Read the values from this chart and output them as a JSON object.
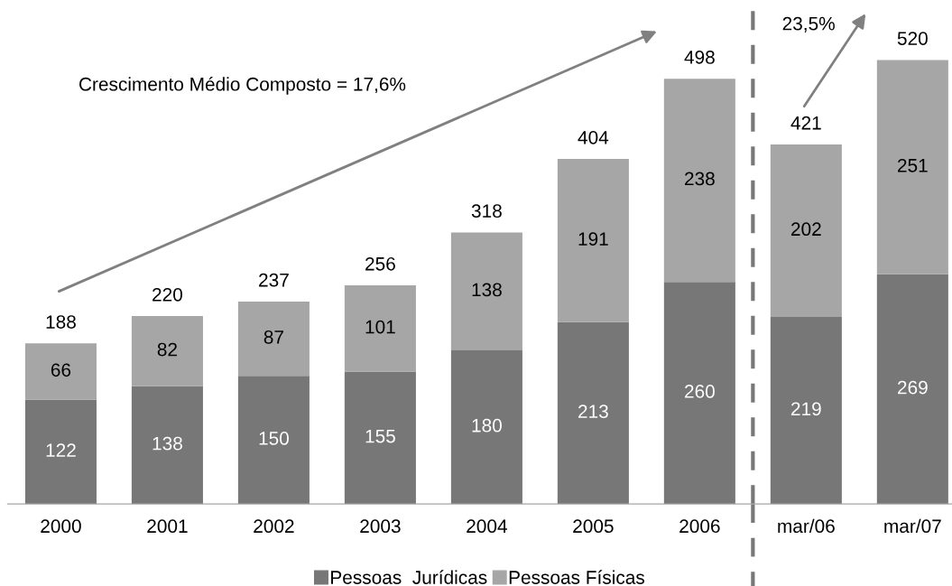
{
  "chart_data": {
    "type": "bar",
    "stacked": true,
    "categories": [
      "2000",
      "2001",
      "2002",
      "2003",
      "2004",
      "2005",
      "2006",
      "mar/06",
      "mar/07"
    ],
    "series": [
      {
        "name": "Pessoas  Jurídicas",
        "color": "#777777",
        "values": [
          122,
          138,
          150,
          155,
          180,
          213,
          260,
          219,
          269
        ]
      },
      {
        "name": "Pessoas Físicas",
        "color": "#a6a6a6",
        "values": [
          66,
          82,
          87,
          101,
          138,
          191,
          238,
          202,
          251
        ]
      }
    ],
    "data_labels": true,
    "totals": [
      "188",
      "220",
      "237",
      "256",
      "318",
      "404",
      "498",
      "421",
      "520"
    ],
    "annotations": [
      "Crescimento Médio Composto = 17,6%",
      "23,5%"
    ],
    "legend": "bottom",
    "grid": false
  }
}
